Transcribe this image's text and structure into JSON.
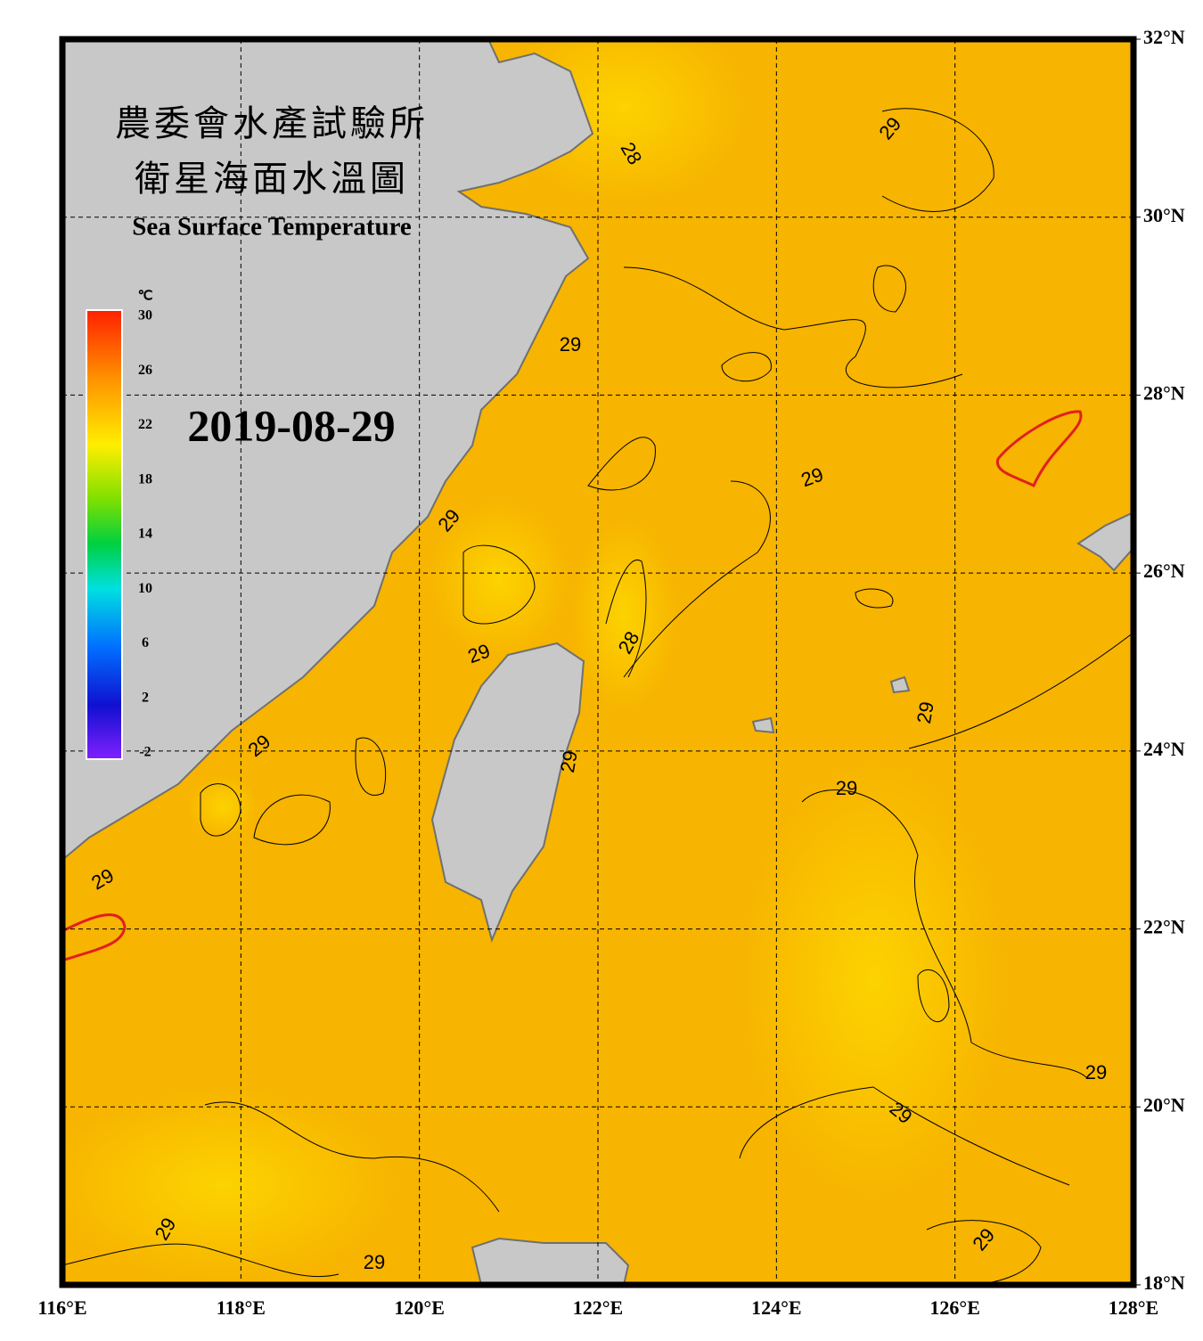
{
  "header": {
    "title_line1": "農委會水產試驗所",
    "title_line2": "衛星海面水溫圖",
    "subtitle": "Sea Surface Temperature",
    "date": "2019-08-29"
  },
  "colorbar": {
    "unit": "℃",
    "range": [
      -2,
      30
    ],
    "ticks": [
      30,
      26,
      22,
      18,
      14,
      10,
      6,
      2,
      -2
    ]
  },
  "map": {
    "lonlim": [
      116,
      128
    ],
    "latlim": [
      18,
      32
    ],
    "lonticks": [
      {
        "value": 116,
        "label": "116°E"
      },
      {
        "value": 118,
        "label": "118°E"
      },
      {
        "value": 120,
        "label": "120°E"
      },
      {
        "value": 122,
        "label": "122°E"
      },
      {
        "value": 124,
        "label": "124°E"
      },
      {
        "value": 126,
        "label": "126°E"
      },
      {
        "value": 128,
        "label": "128°E"
      }
    ],
    "latticks": [
      {
        "value": 18,
        "label": "18°N"
      },
      {
        "value": 20,
        "label": "20°N"
      },
      {
        "value": 22,
        "label": "22°N"
      },
      {
        "value": 24,
        "label": "24°N"
      },
      {
        "value": 26,
        "label": "26°N"
      },
      {
        "value": 28,
        "label": "28°N"
      },
      {
        "value": 30,
        "label": "30°N"
      },
      {
        "value": 32,
        "label": "32°N"
      }
    ],
    "contour_labels": [
      "28",
      "29",
      "29",
      "29",
      "29",
      "29",
      "28",
      "29",
      "29",
      "29",
      "29",
      "29",
      "29",
      "29",
      "29",
      "29",
      "29"
    ]
  }
}
